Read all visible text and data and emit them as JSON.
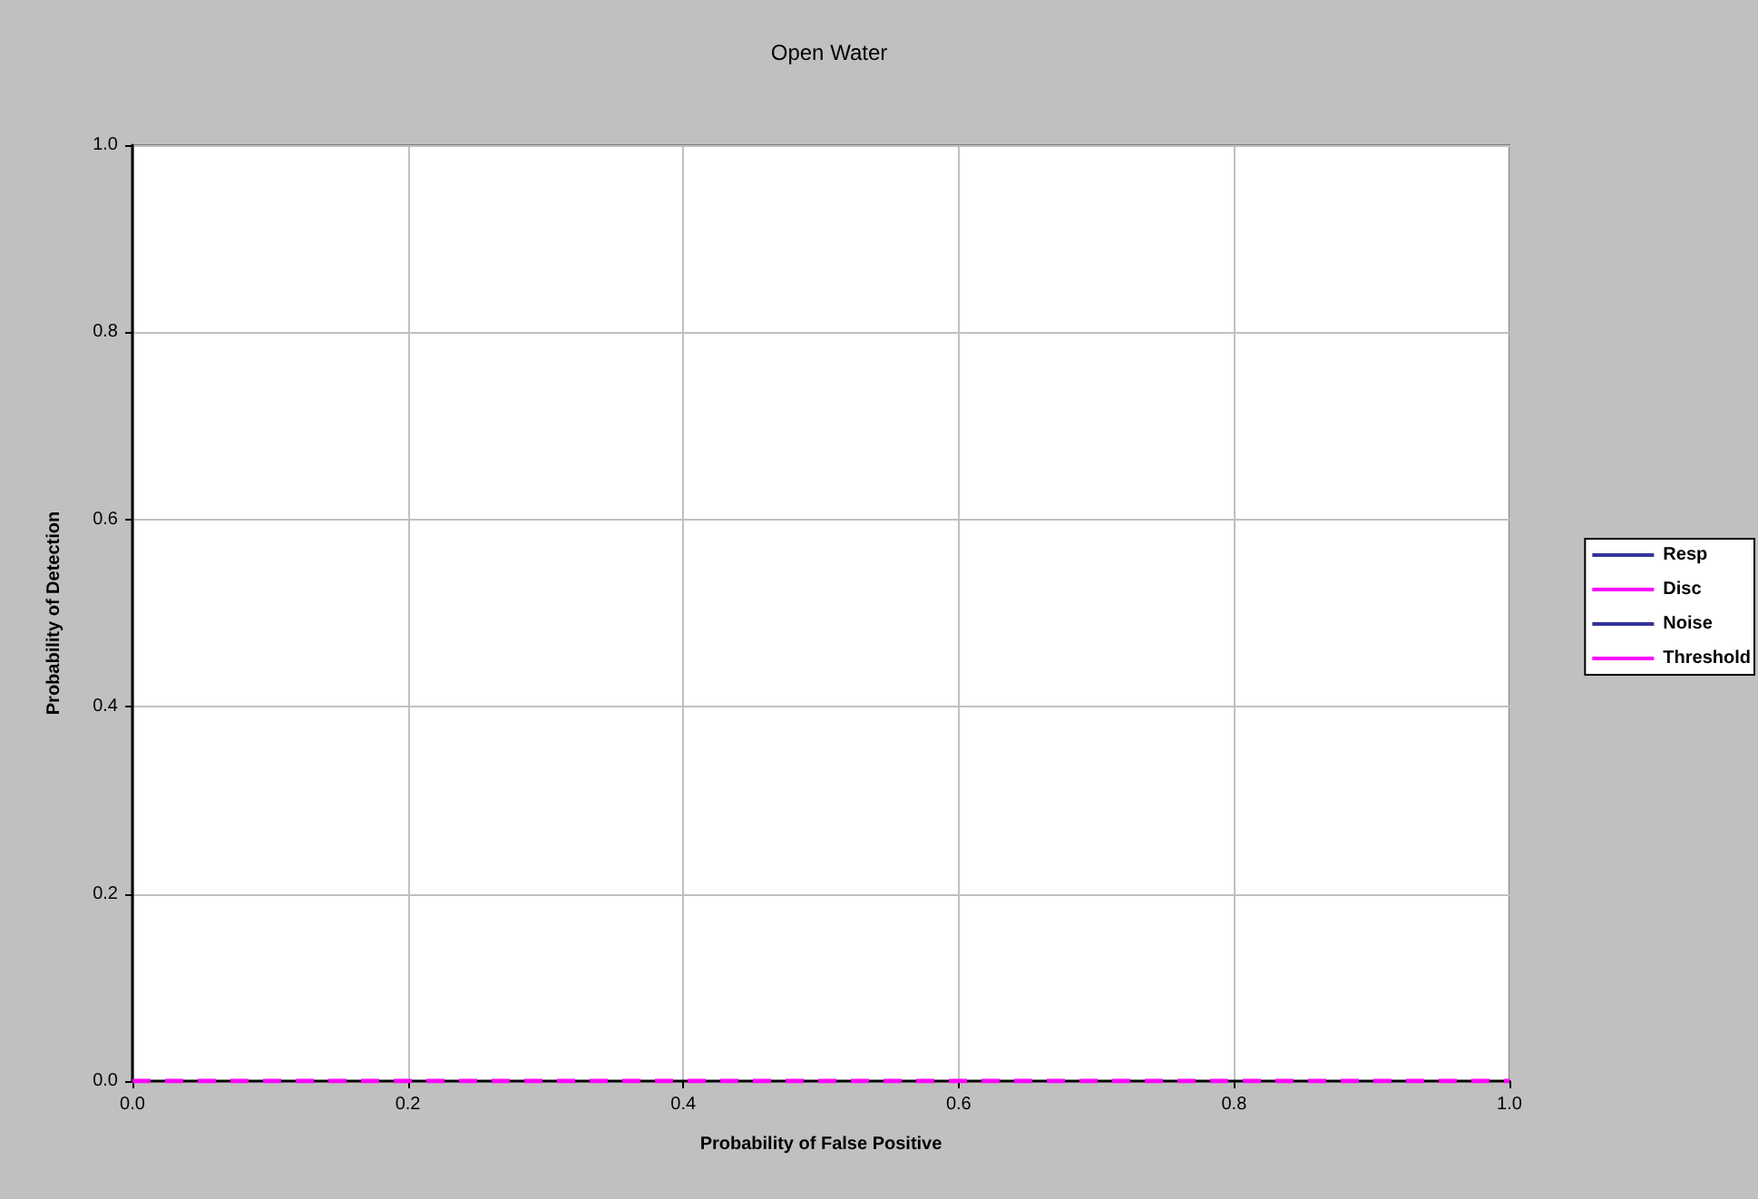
{
  "chart_data": {
    "type": "line",
    "title": "Open Water",
    "xlabel": "Probability of False Positive",
    "ylabel": "Probability of Detection",
    "xlim": [
      0,
      1
    ],
    "ylim": [
      0,
      1
    ],
    "xticks": [
      {
        "value": 0,
        "label": "0.0"
      },
      {
        "value": 0.2,
        "label": "0.2"
      },
      {
        "value": 0.4,
        "label": "0.4"
      },
      {
        "value": 0.6,
        "label": "0.6"
      },
      {
        "value": 0.8,
        "label": "0.8"
      },
      {
        "value": 1,
        "label": "1.0"
      }
    ],
    "yticks": [
      {
        "value": 0,
        "label": "0.0"
      },
      {
        "value": 0.2,
        "label": "0.2"
      },
      {
        "value": 0.4,
        "label": "0.4"
      },
      {
        "value": 0.6,
        "label": "0.6"
      },
      {
        "value": 0.8,
        "label": "0.8"
      },
      {
        "value": 1,
        "label": "1.0"
      }
    ],
    "grid": true,
    "legend": "right",
    "marker": "none",
    "series": [
      {
        "name": "Resp",
        "color": "#333399"
      },
      {
        "name": "Disc",
        "color": "#ff00ff"
      },
      {
        "name": "Noise",
        "color": "#333399"
      },
      {
        "name": "Threshold",
        "color": "#ff00ff",
        "x": [
          0,
          1
        ],
        "values": [
          0,
          0
        ],
        "line_style": "dashed"
      }
    ]
  }
}
